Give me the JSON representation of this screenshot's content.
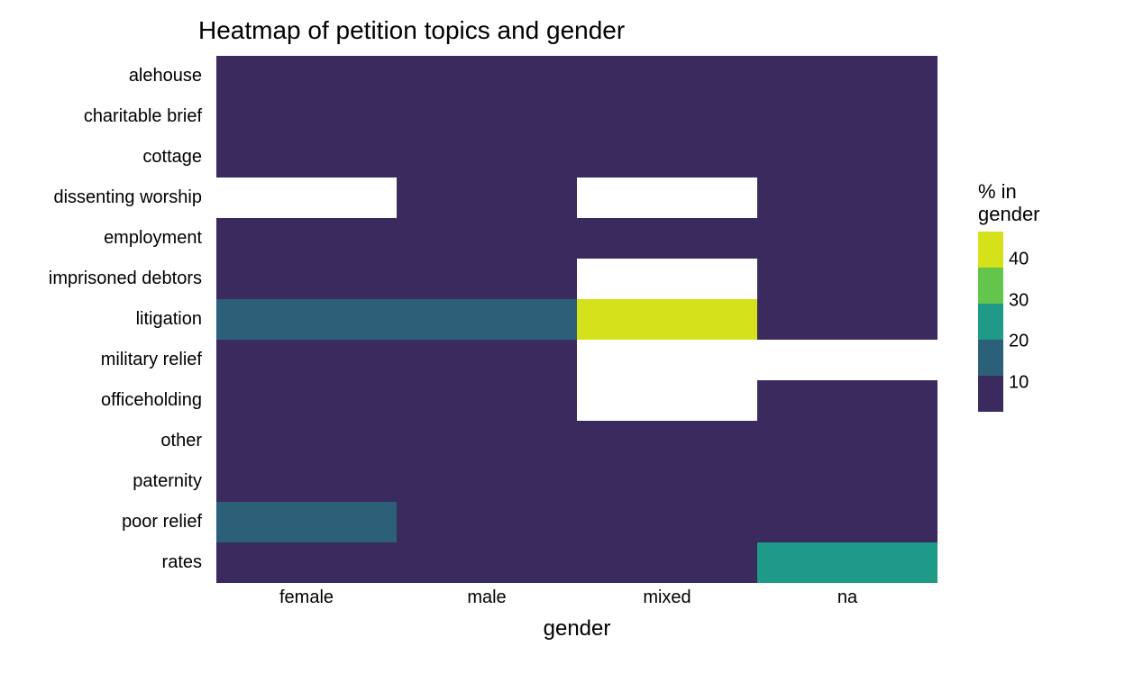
{
  "title": "Heatmap of petition topics and gender",
  "x_axis_title": "gender",
  "legend_title_line1": "% in",
  "legend_title_line2": "gender",
  "background_color": "#ffffff",
  "na_color": "#ffffff",
  "y_categories": [
    "alehouse",
    "charitable brief",
    "cottage",
    "dissenting worship",
    "employment",
    "imprisoned debtors",
    "litigation",
    "military relief",
    "officeholding",
    "other",
    "paternity",
    "poor relief",
    "rates"
  ],
  "x_categories": [
    "female",
    "male",
    "mixed",
    "na"
  ],
  "color_scale": {
    "domain": [
      3,
      47
    ],
    "stops": [
      {
        "v": 3,
        "c": "#3b2a5e"
      },
      {
        "v": 10,
        "c": "#3b2a5e"
      },
      {
        "v": 20,
        "c": "#2b6078"
      },
      {
        "v": 30,
        "c": "#1f9a89"
      },
      {
        "v": 40,
        "c": "#64c54c"
      },
      {
        "v": 47,
        "c": "#d5e21b"
      }
    ]
  },
  "legend_ticks": [
    10,
    20,
    30,
    40
  ],
  "values": [
    [
      5,
      5,
      5,
      5
    ],
    [
      5,
      5,
      5,
      5
    ],
    [
      5,
      5,
      15,
      5
    ],
    [
      null,
      5,
      null,
      5
    ],
    [
      5,
      5,
      5,
      5
    ],
    [
      5,
      5,
      null,
      5
    ],
    [
      27,
      27,
      47,
      15
    ],
    [
      5,
      5,
      null,
      null
    ],
    [
      5,
      5,
      null,
      5
    ],
    [
      5,
      5,
      5,
      5
    ],
    [
      15,
      5,
      5,
      5
    ],
    [
      27,
      15,
      15,
      15
    ],
    [
      5,
      5,
      5,
      38
    ]
  ],
  "title_fontsize": 28,
  "axis_label_fontsize": 20,
  "axis_title_fontsize": 24,
  "legend_fontsize": 20
}
